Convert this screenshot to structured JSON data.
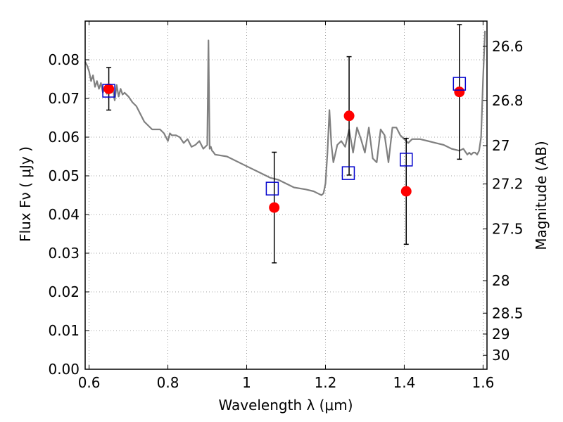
{
  "chart_data": {
    "type": "scatter",
    "xlabel": "Wavelength  λ (μm)",
    "ylabel": "Flux  Fν  ( μJy )",
    "y2label": "Magnitude (AB)",
    "xlim": [
      0.59,
      1.61
    ],
    "ylim": [
      0.0,
      0.09
    ],
    "x_ticks": [
      0.6,
      0.8,
      1.0,
      1.2,
      1.4,
      1.6
    ],
    "x_tick_labels": [
      "0.6",
      "0.8",
      "1",
      "1.2",
      "1.4",
      "1.6"
    ],
    "y_ticks": [
      0.0,
      0.01,
      0.02,
      0.03,
      0.04,
      0.05,
      0.06,
      0.07,
      0.08
    ],
    "y_tick_labels": [
      "0.00",
      "0.01",
      "0.02",
      "0.03",
      "0.04",
      "0.05",
      "0.06",
      "0.07",
      "0.08"
    ],
    "y2_ticks": [
      {
        "label": "26.6",
        "flux": 0.0835
      },
      {
        "label": "26.8",
        "flux": 0.0695
      },
      {
        "label": "27",
        "flux": 0.0578
      },
      {
        "label": "27.2",
        "flux": 0.0479
      },
      {
        "label": "27.5",
        "flux": 0.0363
      },
      {
        "label": "28",
        "flux": 0.0229
      },
      {
        "label": "28.5",
        "flux": 0.0145
      },
      {
        "label": "29",
        "flux": 0.0091
      },
      {
        "label": "30",
        "flux": 0.0036
      }
    ],
    "grid": true,
    "colors": {
      "model": "#808080",
      "observed": "#ff0000",
      "model_photometry": "#0000cc",
      "error_bar": "#000000",
      "grid": "#888888"
    },
    "model_spectrum": {
      "x": [
        0.59,
        0.595,
        0.6,
        0.605,
        0.61,
        0.615,
        0.62,
        0.625,
        0.63,
        0.635,
        0.64,
        0.645,
        0.65,
        0.655,
        0.66,
        0.665,
        0.67,
        0.675,
        0.68,
        0.685,
        0.69,
        0.7,
        0.71,
        0.72,
        0.73,
        0.735,
        0.74,
        0.75,
        0.76,
        0.77,
        0.78,
        0.79,
        0.8,
        0.805,
        0.81,
        0.82,
        0.83,
        0.84,
        0.85,
        0.86,
        0.87,
        0.88,
        0.89,
        0.9,
        0.903,
        0.906,
        0.909,
        0.912,
        0.915,
        0.92,
        0.95,
        1.0,
        1.03,
        1.06,
        1.08,
        1.1,
        1.12,
        1.15,
        1.17,
        1.18,
        1.19,
        1.195,
        1.2,
        1.205,
        1.21,
        1.215,
        1.22,
        1.23,
        1.24,
        1.25,
        1.26,
        1.27,
        1.28,
        1.29,
        1.3,
        1.31,
        1.32,
        1.33,
        1.34,
        1.35,
        1.36,
        1.37,
        1.38,
        1.39,
        1.4,
        1.41,
        1.42,
        1.44,
        1.46,
        1.48,
        1.5,
        1.52,
        1.54,
        1.55,
        1.56,
        1.565,
        1.57,
        1.575,
        1.58,
        1.585,
        1.59,
        1.595,
        1.6,
        1.605
      ],
      "y": [
        0.0795,
        0.0785,
        0.077,
        0.0745,
        0.076,
        0.073,
        0.0745,
        0.0725,
        0.074,
        0.0715,
        0.073,
        0.0712,
        0.0722,
        0.0718,
        0.0728,
        0.0695,
        0.0735,
        0.0705,
        0.0725,
        0.071,
        0.0715,
        0.0705,
        0.069,
        0.068,
        0.066,
        0.065,
        0.064,
        0.063,
        0.062,
        0.062,
        0.062,
        0.061,
        0.059,
        0.061,
        0.0605,
        0.0605,
        0.06,
        0.0585,
        0.0595,
        0.0575,
        0.058,
        0.059,
        0.057,
        0.058,
        0.085,
        0.057,
        0.0575,
        0.0565,
        0.0562,
        0.0555,
        0.055,
        0.0525,
        0.051,
        0.0495,
        0.049,
        0.048,
        0.047,
        0.0465,
        0.046,
        0.0455,
        0.045,
        0.0455,
        0.048,
        0.056,
        0.067,
        0.058,
        0.0535,
        0.058,
        0.059,
        0.0575,
        0.062,
        0.056,
        0.0625,
        0.0595,
        0.056,
        0.0625,
        0.0545,
        0.0535,
        0.062,
        0.0605,
        0.0535,
        0.0625,
        0.0625,
        0.0605,
        0.0595,
        0.0585,
        0.0595,
        0.0595,
        0.059,
        0.0585,
        0.058,
        0.057,
        0.0565,
        0.057,
        0.0555,
        0.056,
        0.0555,
        0.056,
        0.056,
        0.0555,
        0.0565,
        0.06,
        0.075,
        0.0875
      ]
    },
    "observed": [
      {
        "x": 0.65,
        "y": 0.0725,
        "err": 0.0055
      },
      {
        "x": 1.07,
        "y": 0.0418,
        "err": 0.0143
      },
      {
        "x": 1.26,
        "y": 0.0655,
        "err": 0.0153
      },
      {
        "x": 1.405,
        "y": 0.046,
        "err": 0.0137
      },
      {
        "x": 1.54,
        "y": 0.0717,
        "err": 0.0174
      }
    ],
    "model_photometry": [
      {
        "x": 0.65,
        "y": 0.072
      },
      {
        "x": 1.065,
        "y": 0.0467
      },
      {
        "x": 1.258,
        "y": 0.0507
      },
      {
        "x": 1.405,
        "y": 0.0542
      },
      {
        "x": 1.54,
        "y": 0.0738
      }
    ]
  }
}
